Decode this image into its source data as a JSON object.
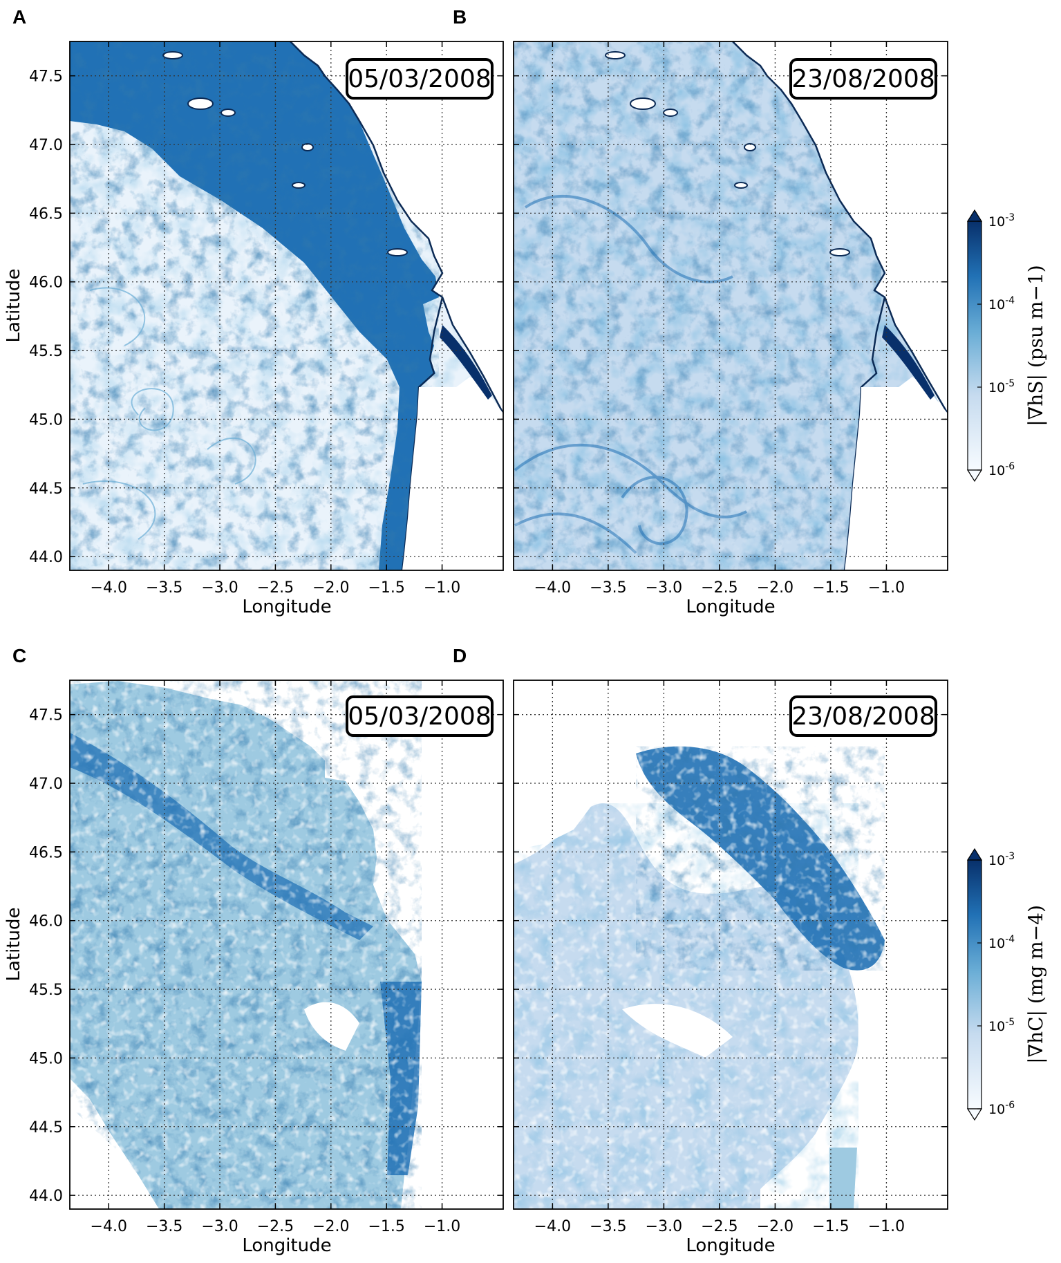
{
  "chart_data": [
    {
      "panel": "A",
      "type": "heatmap",
      "date": "05/03/2008",
      "field": "salinity",
      "xlabel": "Longitude",
      "ylabel": "Latitude",
      "xticks": [
        -4.0,
        -3.5,
        -3.0,
        -2.5,
        -2.0,
        -1.5,
        -1.0
      ],
      "yticks": [
        44.0,
        44.5,
        45.0,
        45.5,
        46.0,
        46.5,
        47.0,
        47.5
      ],
      "xlim": [
        -4.35,
        -0.45
      ],
      "ylim": [
        43.9,
        47.75
      ],
      "grid": true,
      "colorbar": "top"
    },
    {
      "panel": "B",
      "type": "heatmap",
      "date": "23/08/2008",
      "field": "salinity",
      "xlabel": "Longitude",
      "ylabel": "",
      "xticks": [
        -4.0,
        -3.5,
        -3.0,
        -2.5,
        -2.0,
        -1.5,
        -1.0
      ],
      "yticks": [],
      "xlim": [
        -4.35,
        -0.45
      ],
      "ylim": [
        43.9,
        47.75
      ],
      "grid": true,
      "colorbar": "top"
    },
    {
      "panel": "C",
      "type": "heatmap",
      "date": "05/03/2008",
      "field": "chlorophyll",
      "xlabel": "Longitude",
      "ylabel": "Latitude",
      "xticks": [
        -4.0,
        -3.5,
        -3.0,
        -2.5,
        -2.0,
        -1.5,
        -1.0
      ],
      "yticks": [
        44.0,
        44.5,
        45.0,
        45.5,
        46.0,
        46.5,
        47.0,
        47.5
      ],
      "xlim": [
        -4.35,
        -0.45
      ],
      "ylim": [
        43.9,
        47.75
      ],
      "grid": true,
      "colorbar": "bottom"
    },
    {
      "panel": "D",
      "type": "heatmap",
      "date": "23/08/2008",
      "field": "chlorophyll",
      "xlabel": "Longitude",
      "ylabel": "",
      "xticks": [
        -4.0,
        -3.5,
        -3.0,
        -2.5,
        -2.0,
        -1.5,
        -1.0
      ],
      "yticks": [],
      "xlim": [
        -4.35,
        -0.45
      ],
      "ylim": [
        43.9,
        47.75
      ],
      "grid": true,
      "colorbar": "bottom"
    }
  ],
  "colorbars": [
    {
      "id": "top",
      "scale": "log",
      "ticks": [
        "10-3",
        "10-4",
        "10-5",
        "10-6"
      ],
      "tick_values": [
        0.001,
        0.0001,
        1e-05,
        1e-06
      ],
      "label": "|∇hS| (psu m−1)",
      "colors": [
        "#f7fbff",
        "#c6dbef",
        "#6baed6",
        "#2171b5",
        "#08306b"
      ]
    },
    {
      "id": "bottom",
      "scale": "log",
      "ticks": [
        "10-3",
        "10-4",
        "10-5",
        "10-6"
      ],
      "tick_values": [
        0.001,
        0.0001,
        1e-05,
        1e-06
      ],
      "label": "|∇hC| (mg m−4)",
      "colors": [
        "#f7fbff",
        "#c6dbef",
        "#6baed6",
        "#2171b5",
        "#08306b"
      ]
    }
  ],
  "colors": {
    "coast": "#0b2a55",
    "dark": "#08306b",
    "mid": "#2171b5",
    "light": "#9ecae1",
    "pale": "#eaf3fb"
  }
}
